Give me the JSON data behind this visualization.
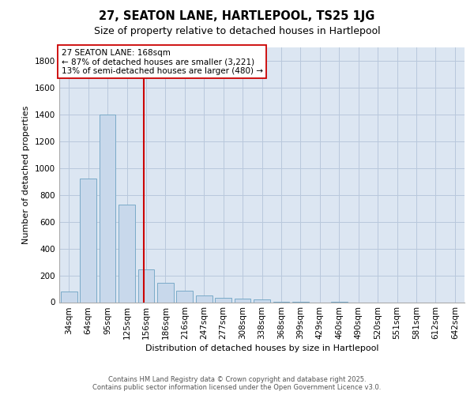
{
  "title1": "27, SEATON LANE, HARTLEPOOL, TS25 1JG",
  "title2": "Size of property relative to detached houses in Hartlepool",
  "xlabel": "Distribution of detached houses by size in Hartlepool",
  "ylabel": "Number of detached properties",
  "annotation_line1": "27 SEATON LANE: 168sqm",
  "annotation_line2": "← 87% of detached houses are smaller (3,221)",
  "annotation_line3": "13% of semi-detached houses are larger (480) →",
  "footer1": "Contains HM Land Registry data © Crown copyright and database right 2025.",
  "footer2": "Contains public sector information licensed under the Open Government Licence v3.0.",
  "bar_color": "#c8d8eb",
  "bar_edge_color": "#7aaac8",
  "vline_color": "#cc0000",
  "annotation_box_edge_color": "#cc0000",
  "background_color": "#dce6f2",
  "categories": [
    "34sqm",
    "64sqm",
    "95sqm",
    "125sqm",
    "156sqm",
    "186sqm",
    "216sqm",
    "247sqm",
    "277sqm",
    "308sqm",
    "338sqm",
    "368sqm",
    "399sqm",
    "429sqm",
    "460sqm",
    "490sqm",
    "520sqm",
    "551sqm",
    "581sqm",
    "612sqm",
    "642sqm"
  ],
  "values": [
    80,
    920,
    1400,
    730,
    245,
    145,
    85,
    50,
    30,
    25,
    20,
    5,
    5,
    0,
    5,
    0,
    0,
    0,
    0,
    0,
    0
  ],
  "ylim": [
    0,
    1900
  ],
  "yticks": [
    0,
    200,
    400,
    600,
    800,
    1000,
    1200,
    1400,
    1600,
    1800
  ],
  "grid_color": "#b8c8dc",
  "title1_fontsize": 10.5,
  "title2_fontsize": 9,
  "tick_fontsize": 7.5,
  "ylabel_fontsize": 8,
  "xlabel_fontsize": 8,
  "annotation_fontsize": 7.5,
  "footer_fontsize": 6
}
